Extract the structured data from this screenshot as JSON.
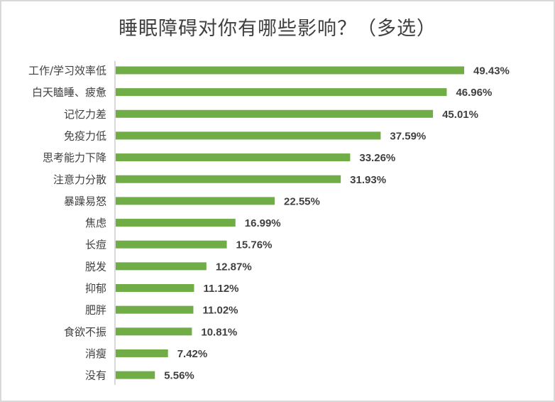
{
  "chart_data": {
    "type": "bar",
    "orientation": "horizontal",
    "title": "睡眠障碍对你有哪些影响？（多选）",
    "categories": [
      "工作/学习效率低",
      "白天瞌睡、疲惫",
      "记忆力差",
      "免疫力低",
      "思考能力下降",
      "注意力分散",
      "暴躁易怒",
      "焦虑",
      "长痘",
      "脱发",
      "抑郁",
      "肥胖",
      "食欲不振",
      "消瘦",
      "没有"
    ],
    "values": [
      49.43,
      46.96,
      45.01,
      37.59,
      33.26,
      31.93,
      22.55,
      16.99,
      15.76,
      12.87,
      11.12,
      11.02,
      10.81,
      7.42,
      5.56
    ],
    "labels": [
      "49.43%",
      "46.96%",
      "45.01%",
      "37.59%",
      "33.26%",
      "31.93%",
      "22.55%",
      "16.99%",
      "15.76%",
      "12.87%",
      "11.12%",
      "11.02%",
      "10.81%",
      "7.42%",
      "5.56%"
    ],
    "unit": "%",
    "xlim": [
      0,
      50
    ],
    "grid": false,
    "legend": "none",
    "bar_color": "#70ad47"
  }
}
